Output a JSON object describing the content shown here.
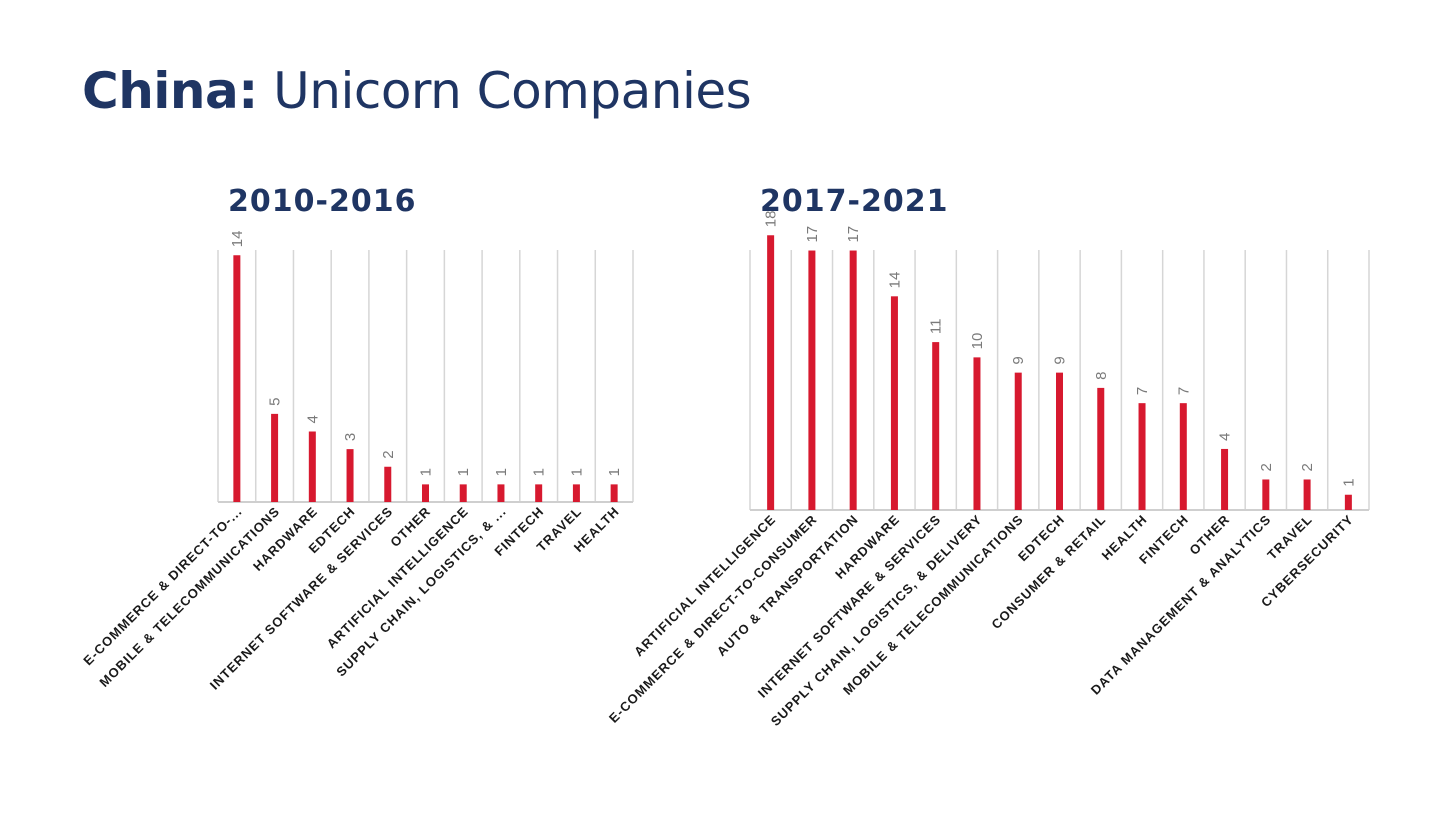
{
  "title": {
    "bold": "China:",
    "rest": " Unicorn Companies"
  },
  "colors": {
    "bar": "#d7192f",
    "title": "#1f3563",
    "grid": "#d6d6d6"
  },
  "chart_data": [
    {
      "type": "bar",
      "title": "2010-2016",
      "orientation": "vertical",
      "categories": [
        "E-COMMERCE & DIRECT-TO-...",
        "MOBILE & TELECOMMUNICATIONS",
        "HARDWARE",
        "EDTECH",
        "INTERNET SOFTWARE & SERVICES",
        "OTHER",
        "ARTIFICIAL INTELLIGENCE",
        "SUPPLY CHAIN, LOGISTICS, & ...",
        "FINTECH",
        "TRAVEL",
        "HEALTH"
      ],
      "values": [
        14,
        5,
        4,
        3,
        2,
        1,
        1,
        1,
        1,
        1,
        1
      ],
      "ylim": [
        0,
        16
      ],
      "grid": "vertical",
      "data_labels": true
    },
    {
      "type": "bar",
      "title": "2017-2021",
      "orientation": "vertical",
      "categories": [
        "ARTIFICIAL INTELLIGENCE",
        "E-COMMERCE & DIRECT-TO-CONSUMER",
        "AUTO & TRANSPORTATION",
        "HARDWARE",
        "INTERNET SOFTWARE & SERVICES",
        "SUPPLY CHAIN, LOGISTICS, & DELIVERY",
        "MOBILE & TELECOMMUNICATIONS",
        "EDTECH",
        "CONSUMER & RETAIL",
        "HEALTH",
        "FINTECH",
        "OTHER",
        "DATA MANAGEMENT & ANALYTICS",
        "TRAVEL",
        "CYBERSECURITY"
      ],
      "values": [
        18,
        17,
        17,
        14,
        11,
        10,
        9,
        9,
        8,
        7,
        7,
        4,
        2,
        2,
        1
      ],
      "ylim": [
        0,
        19
      ],
      "grid": "vertical",
      "data_labels": true
    }
  ]
}
